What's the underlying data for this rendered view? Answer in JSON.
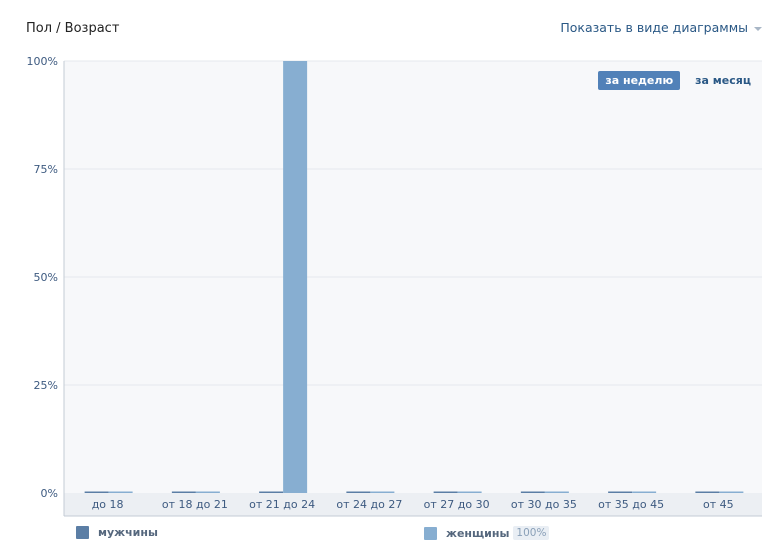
{
  "header": {
    "title": "Пол / Возраст",
    "view_toggle": "Показать в виде диаграммы"
  },
  "period_tabs": [
    {
      "label": "за неделю",
      "active": true
    },
    {
      "label": "за месяц",
      "active": false
    }
  ],
  "legend": [
    {
      "label": "мужчины",
      "color": "#5b7ea5",
      "badge": ""
    },
    {
      "label": "женщины",
      "color": "#87aed1",
      "badge": "100%"
    }
  ],
  "colors": {
    "plot_bg": "#f7f8fa",
    "grid": "#e6e9ee",
    "axis": "#c3cbd4",
    "xaxis_band": "#eceff3",
    "men": "#5b7ea5",
    "women": "#87aed1",
    "link": "#2a5885"
  },
  "chart_data": {
    "type": "bar",
    "categories": [
      "до 18",
      "от 18 до 21",
      "от 21 до 24",
      "от 24 до 27",
      "от 27 до 30",
      "от 30 до 35",
      "от 35 до 45",
      "от 45"
    ],
    "series": [
      {
        "name": "мужчины",
        "values": [
          0,
          0,
          0,
          0,
          0,
          0,
          0,
          0
        ]
      },
      {
        "name": "женщины",
        "values": [
          0,
          0,
          100,
          0,
          0,
          0,
          0,
          0
        ]
      }
    ],
    "ylim": [
      0,
      100
    ],
    "yticks": [
      0,
      25,
      50,
      75,
      100
    ],
    "ytick_labels": [
      "0%",
      "25%",
      "50%",
      "75%",
      "100%"
    ],
    "grid": true,
    "legend_position": "bottom"
  }
}
